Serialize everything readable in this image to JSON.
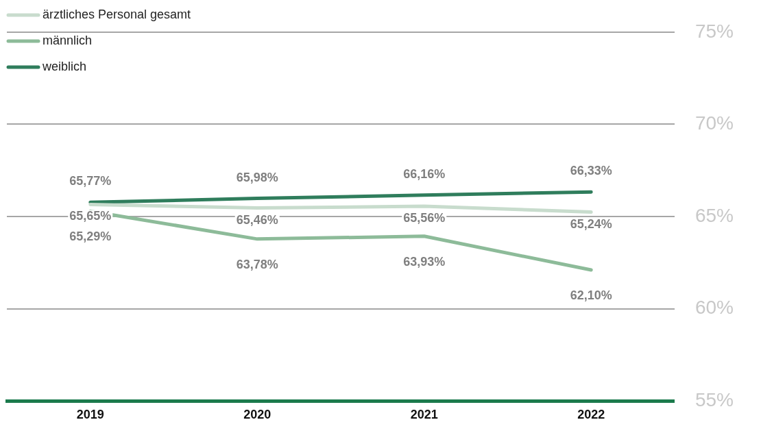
{
  "chart_data": {
    "type": "line",
    "categories": [
      "2019",
      "2020",
      "2021",
      "2022"
    ],
    "series": [
      {
        "name": "ärztliches Personal gesamt",
        "color": "#c8dccd",
        "values": [
          65.65,
          65.46,
          65.56,
          65.24
        ],
        "value_labels": [
          "65,65%",
          "65,46%",
          "65,56%",
          "65,24%"
        ]
      },
      {
        "name": "männlich",
        "color": "#8dbb99",
        "values": [
          65.29,
          63.78,
          63.93,
          62.1
        ],
        "value_labels": [
          "65,29%",
          "63,78%",
          "63,93%",
          "62,10%"
        ]
      },
      {
        "name": "weiblich",
        "color": "#2f7d5c",
        "values": [
          65.77,
          65.98,
          66.16,
          66.33
        ],
        "value_labels": [
          "65,77%",
          "65,98%",
          "66,16%",
          "66,33%"
        ]
      }
    ],
    "ylim": [
      55,
      75
    ],
    "yticks": [
      {
        "value": 55,
        "label": "55%"
      },
      {
        "value": 60,
        "label": "60%"
      },
      {
        "value": 65,
        "label": "65%"
      },
      {
        "value": 70,
        "label": "70%"
      },
      {
        "value": 75,
        "label": "75%"
      }
    ],
    "grid": "y",
    "legend": "top left",
    "marker": "none",
    "line_style": "solid"
  }
}
